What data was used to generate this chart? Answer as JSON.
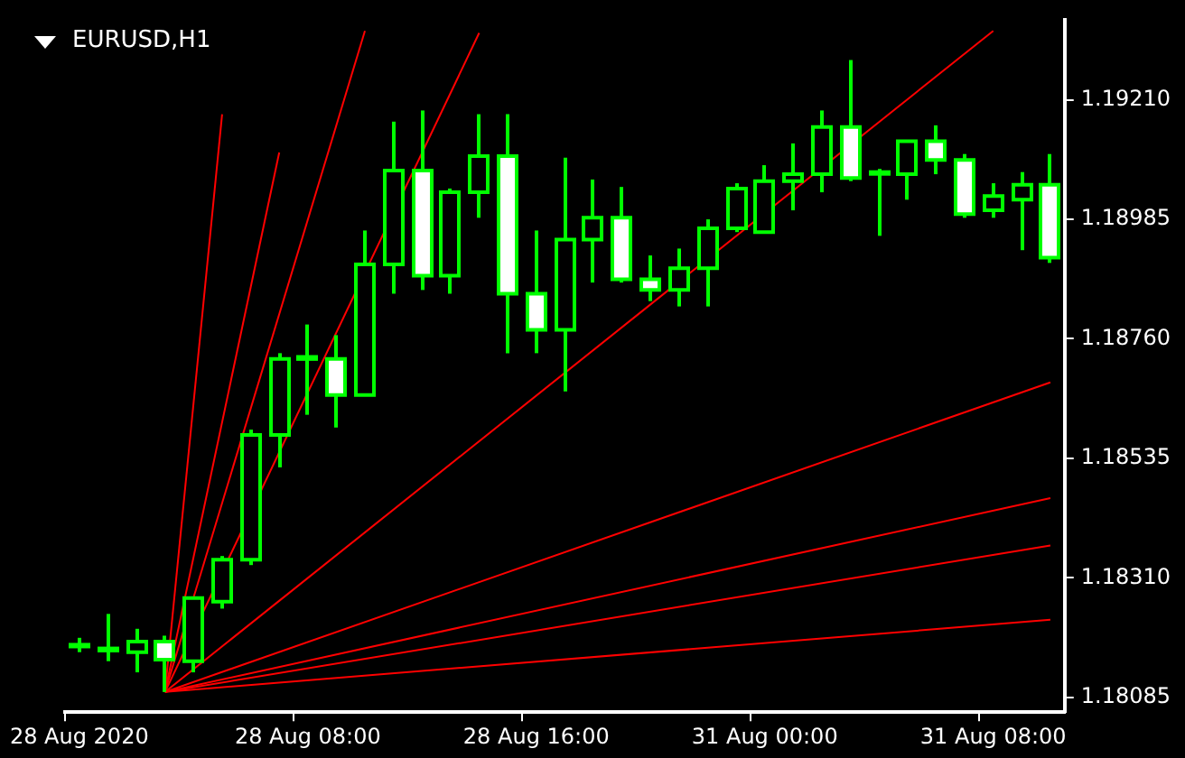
{
  "chart_data": {
    "type": "candlestick",
    "title": "EURUSD,H1",
    "categories": [
      "28 Aug 2020",
      null,
      null,
      null,
      null,
      null,
      null,
      null,
      "28 Aug 08:00",
      null,
      null,
      null,
      null,
      null,
      null,
      null,
      "28 Aug 16:00",
      null,
      null,
      null,
      null,
      null,
      null,
      null,
      "31 Aug 00:00",
      null,
      null,
      null,
      null,
      null,
      null,
      null,
      "31 Aug 08:00",
      null,
      null
    ],
    "ohlc": [
      [
        1.18184,
        1.18197,
        1.1817,
        1.18184
      ],
      [
        1.18173,
        1.18242,
        1.18153,
        1.18177
      ],
      [
        1.1817,
        1.18214,
        1.18132,
        1.1819
      ],
      [
        1.1819,
        1.18201,
        1.18095,
        1.18156
      ],
      [
        1.18153,
        1.18272,
        1.18132,
        1.18272
      ],
      [
        1.18265,
        1.18351,
        1.18252,
        1.18344
      ],
      [
        1.18344,
        1.18589,
        1.18334,
        1.18579
      ],
      [
        1.18579,
        1.18733,
        1.18518,
        1.18722
      ],
      [
        1.18722,
        1.18787,
        1.18617,
        1.18726
      ],
      [
        1.18722,
        1.18767,
        1.18593,
        1.18654
      ],
      [
        1.18654,
        1.18964,
        1.18654,
        1.189
      ],
      [
        1.189,
        1.19169,
        1.18845,
        1.19077
      ],
      [
        1.19077,
        1.1919,
        1.18852,
        1.18879
      ],
      [
        1.18879,
        1.19043,
        1.18845,
        1.19036
      ],
      [
        1.19036,
        1.19183,
        1.18988,
        1.19104
      ],
      [
        1.19104,
        1.19183,
        1.18733,
        1.18845
      ],
      [
        1.18845,
        1.18964,
        1.18733,
        1.18777
      ],
      [
        1.18777,
        1.19101,
        1.18661,
        1.18947
      ],
      [
        1.18947,
        1.1906,
        1.18866,
        1.18988
      ],
      [
        1.18988,
        1.19046,
        1.18866,
        1.18872
      ],
      [
        1.18872,
        1.18917,
        1.18831,
        1.18852
      ],
      [
        1.18852,
        1.1893,
        1.18821,
        1.18893
      ],
      [
        1.18893,
        1.18985,
        1.18821,
        1.18968
      ],
      [
        1.18968,
        1.19053,
        1.18961,
        1.19043
      ],
      [
        1.18961,
        1.19087,
        1.18961,
        1.19057
      ],
      [
        1.19057,
        1.19128,
        1.19002,
        1.1907
      ],
      [
        1.1907,
        1.1919,
        1.19036,
        1.19159
      ],
      [
        1.19159,
        1.19285,
        1.19057,
        1.19063
      ],
      [
        1.19074,
        1.1908,
        1.18954,
        1.19074
      ],
      [
        1.1907,
        1.19132,
        1.19022,
        1.19132
      ],
      [
        1.19132,
        1.19162,
        1.1907,
        1.19097
      ],
      [
        1.19097,
        1.19108,
        1.18988,
        1.18995
      ],
      [
        1.19002,
        1.19053,
        1.18988,
        1.19029
      ],
      [
        1.19022,
        1.19074,
        1.18927,
        1.1905
      ],
      [
        1.1905,
        1.19108,
        1.18903,
        1.18913
      ]
    ],
    "color": "#00ff00",
    "series": [
      {
        "type": "line",
        "color": "#ff0000",
        "values": [
          null,
          null,
          null,
          1.18095,
          null,
          1.19183,
          null,
          null,
          null,
          null,
          null,
          null,
          null,
          null,
          null,
          null,
          null,
          null,
          null,
          null,
          null,
          null,
          null,
          null,
          null,
          null,
          null,
          null,
          null,
          null,
          null,
          null,
          null,
          null,
          null
        ]
      },
      {
        "type": "line",
        "color": "#ff0000",
        "values": [
          null,
          null,
          null,
          1.18095,
          null,
          null,
          null,
          1.19111,
          null,
          null,
          null,
          null,
          null,
          null,
          null,
          null,
          null,
          null,
          null,
          null,
          null,
          null,
          null,
          null,
          null,
          null,
          null,
          null,
          null,
          null,
          null,
          null,
          null,
          null,
          null
        ]
      },
      {
        "type": "line",
        "color": "#ff0000",
        "values": [
          null,
          null,
          null,
          1.18095,
          null,
          null,
          null,
          null,
          null,
          null,
          1.1934,
          null,
          null,
          null,
          null,
          null,
          null,
          null,
          null,
          null,
          null,
          null,
          null,
          null,
          null,
          null,
          null,
          null,
          null,
          null,
          null,
          null,
          null,
          null,
          null
        ]
      },
      {
        "type": "line",
        "color": "#ff0000",
        "values": [
          null,
          null,
          null,
          1.18095,
          null,
          null,
          null,
          null,
          null,
          null,
          null,
          null,
          null,
          null,
          1.19336,
          null,
          null,
          null,
          null,
          null,
          null,
          null,
          null,
          null,
          null,
          null,
          null,
          null,
          null,
          null,
          null,
          null,
          null,
          null,
          null
        ]
      },
      {
        "type": "line",
        "color": "#ff0000",
        "values": [
          null,
          null,
          null,
          1.18095,
          null,
          null,
          null,
          null,
          null,
          null,
          null,
          null,
          null,
          null,
          null,
          null,
          null,
          null,
          null,
          null,
          null,
          null,
          null,
          null,
          null,
          null,
          null,
          null,
          null,
          null,
          null,
          null,
          1.1934,
          null,
          null
        ]
      },
      {
        "type": "line",
        "color": "#ff0000",
        "values": [
          null,
          null,
          null,
          1.18095,
          null,
          null,
          null,
          null,
          null,
          null,
          null,
          null,
          null,
          null,
          null,
          null,
          null,
          null,
          null,
          null,
          null,
          null,
          null,
          null,
          null,
          null,
          null,
          null,
          null,
          null,
          null,
          null,
          null,
          null,
          1.18678
        ]
      },
      {
        "type": "line",
        "color": "#ff0000",
        "values": [
          null,
          null,
          null,
          1.18095,
          null,
          null,
          null,
          null,
          null,
          null,
          null,
          null,
          null,
          null,
          null,
          null,
          null,
          null,
          null,
          null,
          null,
          null,
          null,
          null,
          null,
          null,
          null,
          null,
          null,
          null,
          null,
          null,
          null,
          null,
          1.1846
        ]
      },
      {
        "type": "line",
        "color": "#ff0000",
        "values": [
          null,
          null,
          null,
          1.18095,
          null,
          null,
          null,
          null,
          null,
          null,
          null,
          null,
          null,
          null,
          null,
          null,
          null,
          null,
          null,
          null,
          null,
          null,
          null,
          null,
          null,
          null,
          null,
          null,
          null,
          null,
          null,
          null,
          null,
          null,
          1.18371
        ]
      },
      {
        "type": "line",
        "color": "#ff0000",
        "values": [
          null,
          null,
          null,
          1.18095,
          null,
          null,
          null,
          null,
          null,
          null,
          null,
          null,
          null,
          null,
          null,
          null,
          null,
          null,
          null,
          null,
          null,
          null,
          null,
          null,
          null,
          null,
          null,
          null,
          null,
          null,
          null,
          null,
          null,
          null,
          1.18231
        ]
      }
    ],
    "ylim": [
      1.18057,
      1.1936
    ],
    "yticks": [
      {
        "value": 1.18085,
        "label": "1.18085"
      },
      {
        "value": 1.1831,
        "label": "1.18310"
      },
      {
        "value": 1.18535,
        "label": "1.18535"
      },
      {
        "value": 1.1876,
        "label": "1.18760"
      },
      {
        "value": 1.18985,
        "label": "1.18985"
      },
      {
        "value": 1.1921,
        "label": "1.19210"
      }
    ],
    "grid": false,
    "legend": false
  }
}
